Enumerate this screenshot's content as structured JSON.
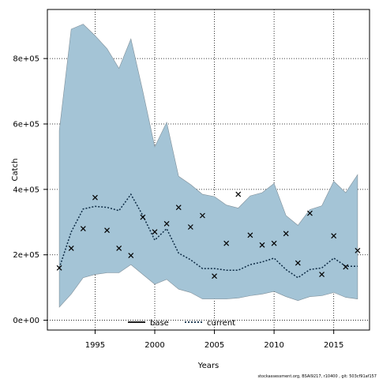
{
  "chart_data": {
    "type": "line",
    "xlabel": "Years",
    "ylabel": "Catch",
    "xlim": [
      1991,
      2018
    ],
    "ylim": [
      -30000,
      950000
    ],
    "x_ticks": [
      1995,
      2000,
      2005,
      2010,
      2015
    ],
    "y_ticks": [
      0,
      200000,
      400000,
      600000,
      800000
    ],
    "y_tick_labels": [
      "0e+00",
      "2e+05",
      "4e+05",
      "6e+05",
      "8e+05"
    ],
    "grid": true,
    "grid_style": "dotted",
    "legend_position": "bottom",
    "band": {
      "color": "#a4c4d6",
      "x": [
        1992,
        1993,
        1994,
        1995,
        1996,
        1997,
        1998,
        1999,
        2000,
        2001,
        2002,
        2003,
        2004,
        2005,
        2006,
        2007,
        2008,
        2009,
        2010,
        2011,
        2012,
        2013,
        2014,
        2015,
        2016,
        2017
      ],
      "upper": [
        580000,
        890000,
        905000,
        870000,
        830000,
        770000,
        860000,
        700000,
        530000,
        605000,
        440000,
        415000,
        385000,
        378000,
        352000,
        343000,
        380000,
        390000,
        418000,
        320000,
        290000,
        338000,
        350000,
        425000,
        390000,
        445000
      ],
      "lower": [
        40000,
        80000,
        130000,
        140000,
        145000,
        145000,
        170000,
        140000,
        110000,
        125000,
        95000,
        85000,
        65000,
        65000,
        65000,
        68000,
        75000,
        80000,
        88000,
        72000,
        60000,
        72000,
        75000,
        85000,
        70000,
        65000
      ]
    },
    "series": [
      {
        "name": "base",
        "style": "solid",
        "color": "#000000",
        "x": [],
        "values": []
      },
      {
        "name": "current",
        "style": "dotted",
        "color": "#0d2b45",
        "x": [
          1992,
          1993,
          1994,
          1995,
          1996,
          1997,
          1998,
          1999,
          2000,
          2001,
          2002,
          2003,
          2004,
          2005,
          2006,
          2007,
          2008,
          2009,
          2010,
          2011,
          2012,
          2013,
          2014,
          2015,
          2016,
          2017
        ],
        "values": [
          160000,
          270000,
          340000,
          348000,
          345000,
          335000,
          385000,
          320000,
          245000,
          280000,
          205000,
          185000,
          158000,
          158000,
          153000,
          153000,
          170000,
          178000,
          190000,
          155000,
          130000,
          155000,
          160000,
          190000,
          165000,
          165000
        ]
      }
    ],
    "observations": {
      "marker": "x",
      "color": "#000000",
      "x": [
        1992,
        1993,
        1994,
        1995,
        1996,
        1997,
        1998,
        1999,
        2000,
        2001,
        2002,
        2003,
        2004,
        2005,
        2006,
        2007,
        2008,
        2009,
        2010,
        2011,
        2012,
        2013,
        2014,
        2015,
        2016,
        2017
      ],
      "values": [
        160000,
        220000,
        280000,
        375000,
        275000,
        220000,
        198000,
        315000,
        270000,
        295000,
        345000,
        285000,
        320000,
        135000,
        235000,
        385000,
        260000,
        230000,
        235000,
        265000,
        175000,
        327000,
        140000,
        258000,
        163000,
        213000
      ]
    },
    "footnote": "stockassessment.org, BSAI9217, r10400 , git: 503cf91af157"
  }
}
